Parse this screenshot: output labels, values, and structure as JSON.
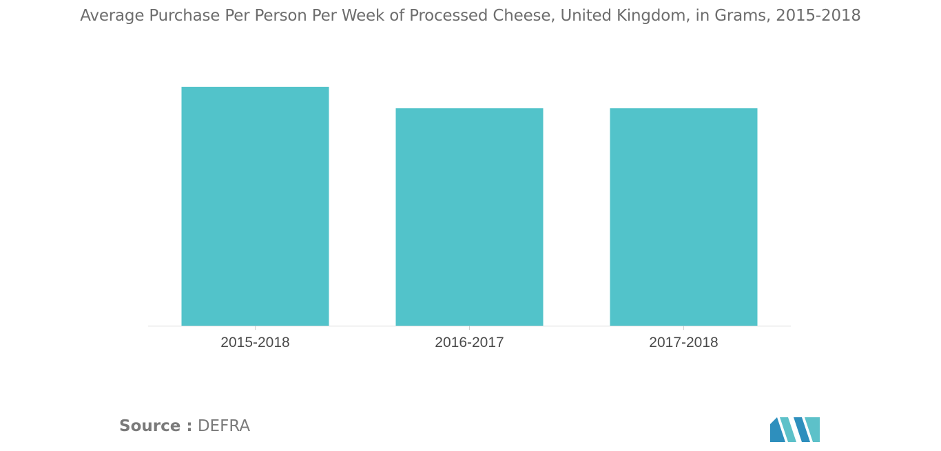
{
  "chart_data": {
    "type": "bar",
    "title": "Average Purchase Per Person Per Week of Processed Cheese, United Kingdom, in Grams, 2015-2018",
    "categories": [
      "2015-2018",
      "2016-2017",
      "2017-2018"
    ],
    "values": [
      100,
      91,
      91
    ],
    "ylim": [
      0,
      100
    ],
    "grid": false,
    "legend": "none",
    "bar_color": "#52c3ca",
    "xlabel": "",
    "ylabel": ""
  },
  "source": {
    "label": "Source :",
    "value": "DEFRA"
  },
  "logo": {
    "icon": "company-logo-icon",
    "colors": [
      "#2e8fbd",
      "#5dc1c9"
    ]
  }
}
